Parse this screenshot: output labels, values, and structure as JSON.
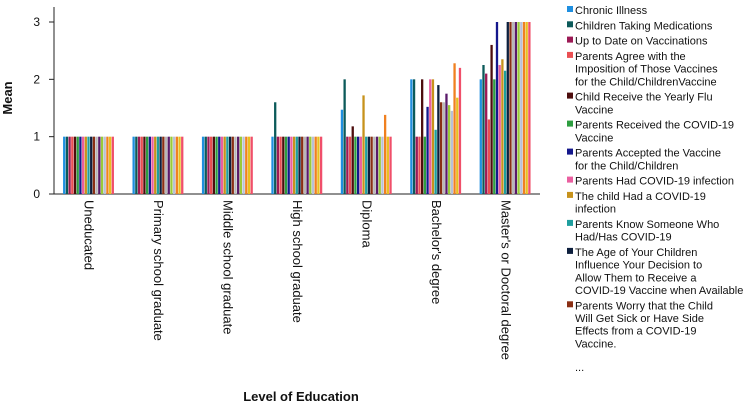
{
  "chart_data": {
    "type": "bar",
    "title": "",
    "xlabel": "Level of Education",
    "ylabel": "Mean",
    "ylim": [
      0,
      3
    ],
    "yticks": [
      "0",
      "1",
      "2",
      "3"
    ],
    "grid": false,
    "legend_position": "right",
    "categories": [
      "Uneducated",
      "Primary school graduate",
      "Middle school graduate",
      "High school graduate",
      "Diploma",
      "Bachelor's degree",
      "Master's or Doctoral degree"
    ],
    "series": [
      {
        "name": "Chronic Illness",
        "color": "#1f8fe0",
        "values": [
          1,
          1,
          1,
          1,
          1.47,
          2,
          2
        ]
      },
      {
        "name": "Children Taking Medications",
        "color": "#0c5a5a",
        "values": [
          1,
          1,
          1,
          1.6,
          2,
          2,
          2.25
        ]
      },
      {
        "name": "Up to Date on Vaccinations",
        "color": "#9c1a55",
        "values": [
          1,
          1,
          1,
          1,
          1,
          1,
          2.1
        ]
      },
      {
        "name": "Parents Agree with the Imposition of Those Vaccines for the Child/ChildrenVaccine",
        "color": "#ea4f52",
        "values": [
          1,
          1,
          1,
          1,
          1,
          1,
          1.3
        ]
      },
      {
        "name": "Child Receive the Yearly Flu Vaccine",
        "color": "#4d0d0d",
        "values": [
          1,
          1,
          1,
          1,
          1.18,
          2,
          2.6
        ]
      },
      {
        "name": "Parents Received the COVID-19 Vaccine",
        "color": "#2e9e40",
        "values": [
          1,
          1,
          1,
          1,
          1,
          1,
          2
        ]
      },
      {
        "name": "Parents Accepted the Vaccine for the Child/Children",
        "color": "#14178c",
        "values": [
          1,
          1,
          1,
          1,
          1,
          1.52,
          3
        ]
      },
      {
        "name": "Parents Had COVID-19 infection",
        "color": "#ea5fa0",
        "values": [
          1,
          1,
          1,
          1,
          1,
          2,
          2.25
        ]
      },
      {
        "name": "The child Had a COVID-19 infection",
        "color": "#c7921c",
        "values": [
          1,
          1,
          1,
          1,
          1.72,
          2,
          2.35
        ]
      },
      {
        "name": "Parents Know Someone Who Had/Has COVID-19",
        "color": "#1f9e9e",
        "values": [
          1,
          1,
          1,
          1,
          1,
          1.12,
          2.15
        ]
      },
      {
        "name": "The Age of Your Children Influence Your Decision to Allow Them to Receive a COVID-19 Vaccine when Available",
        "color": "#0d1f3d",
        "values": [
          1,
          1,
          1,
          1,
          1,
          1.9,
          3
        ]
      },
      {
        "name": "Parents Worry that the Child Will Get Sick or Have Side Effects from a COVID-19 Vaccine.",
        "color": "#8a2f14",
        "values": [
          1,
          1,
          1,
          1,
          1,
          1.6,
          3
        ]
      },
      {
        "name": "",
        "color": "#b8b8b8",
        "values": [
          1,
          1,
          1,
          1,
          1,
          1.6,
          3
        ]
      },
      {
        "name": "",
        "color": "#5a1a6a",
        "values": [
          1,
          1,
          1,
          1,
          1,
          1.75,
          3
        ]
      },
      {
        "name": "",
        "color": "#9aca3a",
        "values": [
          1,
          1,
          1,
          1,
          1,
          1.55,
          3
        ]
      },
      {
        "name": "",
        "color": "#b8c0d8",
        "values": [
          1,
          1,
          1,
          1,
          1,
          1.45,
          3
        ]
      },
      {
        "name": "",
        "color": "#f08020",
        "values": [
          1,
          1,
          1,
          1,
          1.38,
          2.28,
          3
        ]
      },
      {
        "name": "",
        "color": "#e8c020",
        "values": [
          1,
          1,
          1,
          1,
          1,
          1.68,
          3
        ]
      },
      {
        "name": "",
        "color": "#f04f6a",
        "values": [
          1,
          1,
          1,
          1,
          1,
          2.2,
          3
        ]
      }
    ],
    "legend_more": "..."
  }
}
